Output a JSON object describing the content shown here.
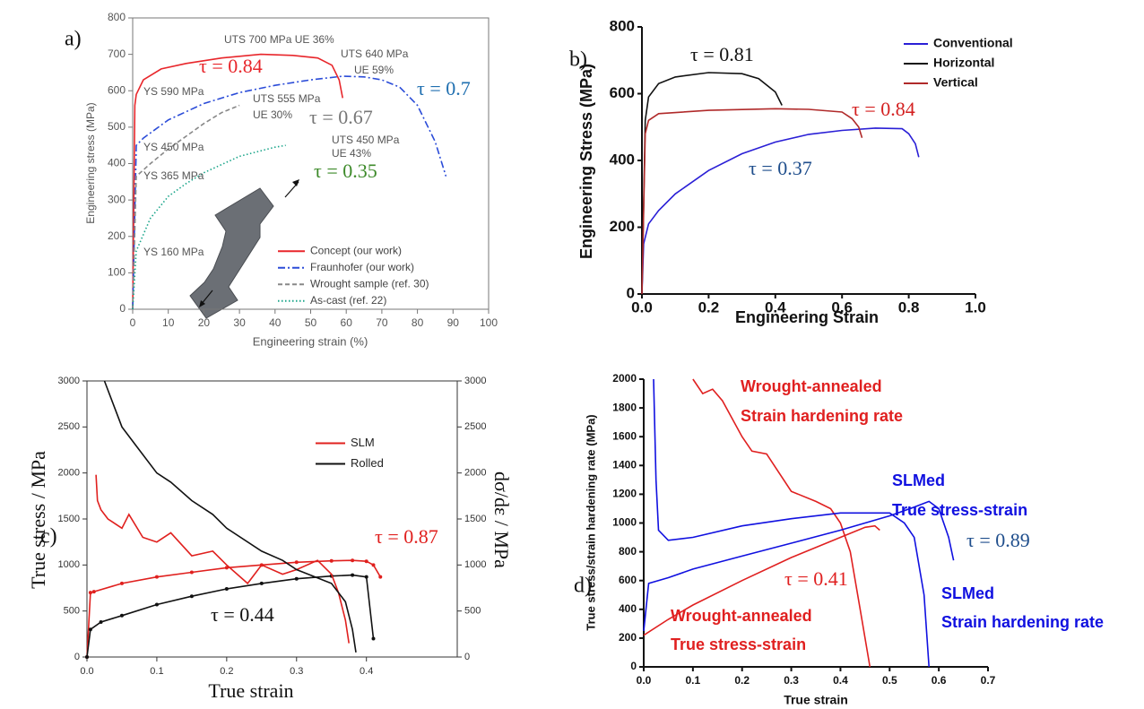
{
  "chart_data": [
    {
      "type": "line",
      "panel_label": "a)",
      "x_label": "Engineering strain (%)",
      "y_label": "Engineering stress (MPa)",
      "xlim": [
        0,
        100
      ],
      "xticks": [
        0,
        10,
        20,
        30,
        40,
        50,
        60,
        70,
        80,
        90,
        100
      ],
      "ylim": [
        0,
        800
      ],
      "yticks": [
        0,
        100,
        200,
        300,
        400,
        500,
        600,
        700,
        800
      ],
      "legend": "lower right",
      "series": [
        {
          "name": "Concept (our work)",
          "color": "#e8262b",
          "linestyle": "solid",
          "x": [
            0,
            0.6,
            1,
            3,
            8,
            15,
            25,
            36,
            45,
            52,
            56,
            58,
            59
          ],
          "values": [
            0,
            560,
            590,
            630,
            660,
            675,
            690,
            700,
            697,
            690,
            670,
            630,
            580
          ]
        },
        {
          "name": "Fraunhofer (our work)",
          "color": "#2b4cd8",
          "linestyle": "dashdot",
          "x": [
            0,
            1,
            3,
            10,
            20,
            30,
            40,
            50,
            59,
            65,
            70,
            75,
            80,
            85,
            88
          ],
          "values": [
            0,
            450,
            470,
            520,
            565,
            595,
            615,
            630,
            640,
            638,
            630,
            610,
            560,
            460,
            365
          ]
        },
        {
          "name": "Wrought sample (ref. 30)",
          "color": "#888888",
          "linestyle": "dashed",
          "x": [
            0,
            1,
            5,
            10,
            15,
            20,
            25,
            30
          ],
          "values": [
            0,
            365,
            400,
            440,
            475,
            510,
            540,
            560
          ]
        },
        {
          "name": "As-cast (ref. 22)",
          "color": "#1aa58a",
          "linestyle": "dotted",
          "x": [
            0,
            1,
            5,
            10,
            15,
            20,
            30,
            40,
            43
          ],
          "values": [
            0,
            160,
            250,
            310,
            345,
            375,
            420,
            445,
            450
          ]
        }
      ],
      "annotations": [
        {
          "text": "UTS 700 MPa UE 36%",
          "color": "#555555"
        },
        {
          "text": "UTS 640 MPa",
          "color": "#555555"
        },
        {
          "text": "UE 59%",
          "color": "#555555"
        },
        {
          "text": "UTS 555 MPa",
          "color": "#555555"
        },
        {
          "text": "UE 30%",
          "color": "#555555"
        },
        {
          "text": "UTS 450 MPa",
          "color": "#555555"
        },
        {
          "text": "UE 43%",
          "color": "#555555"
        },
        {
          "text": "YS 590 MPa",
          "color": "#555555"
        },
        {
          "text": "YS 450 MPa",
          "color": "#555555"
        },
        {
          "text": "YS 365 MPa",
          "color": "#555555"
        },
        {
          "text": "YS 160 MPa",
          "color": "#555555"
        },
        {
          "text": "τ = 0.84",
          "color": "#e8262b"
        },
        {
          "text": "τ = 0.7",
          "color": "#1f6fb0"
        },
        {
          "text": "τ = 0.67",
          "color": "#777777"
        },
        {
          "text": "τ = 0.35",
          "color": "#3d8a2a"
        }
      ]
    },
    {
      "type": "line",
      "panel_label": "b)",
      "x_label": "Engineering Strain",
      "y_label": "Engineering Stress (MPa)",
      "xlim": [
        0,
        1.0
      ],
      "xticks": [
        {
          "value": 0,
          "label": "0.0"
        },
        0.2,
        0.4,
        0.6,
        0.8,
        {
          "value": 1,
          "label": "1.0"
        }
      ],
      "ylim": [
        0,
        800
      ],
      "yticks": [
        0,
        200,
        400,
        600,
        800
      ],
      "legend": "upper right",
      "series": [
        {
          "name": "Conventional",
          "color": "#2a1fd6",
          "linestyle": "solid",
          "x": [
            0,
            0.005,
            0.02,
            0.05,
            0.1,
            0.2,
            0.3,
            0.4,
            0.5,
            0.6,
            0.7,
            0.78,
            0.8,
            0.82,
            0.83
          ],
          "values": [
            0,
            150,
            210,
            250,
            300,
            370,
            420,
            455,
            478,
            490,
            497,
            495,
            480,
            450,
            410
          ]
        },
        {
          "name": "Horizontal",
          "color": "#111111",
          "linestyle": "solid",
          "x": [
            0,
            0.01,
            0.02,
            0.05,
            0.1,
            0.2,
            0.3,
            0.35,
            0.4,
            0.42
          ],
          "values": [
            0,
            520,
            590,
            630,
            650,
            663,
            660,
            645,
            605,
            565
          ]
        },
        {
          "name": "Vertical",
          "color": "#b02a2a",
          "linestyle": "solid",
          "x": [
            0,
            0.01,
            0.02,
            0.05,
            0.2,
            0.4,
            0.5,
            0.6,
            0.63,
            0.65,
            0.66
          ],
          "values": [
            0,
            480,
            520,
            540,
            550,
            555,
            553,
            545,
            525,
            500,
            468
          ]
        }
      ],
      "annotations": [
        {
          "text": "τ = 0.81",
          "color": "#111111"
        },
        {
          "text": "τ = 0.84",
          "color": "#d42020"
        },
        {
          "text": "τ = 0.37",
          "color": "#1f4e8c"
        }
      ]
    },
    {
      "type": "line",
      "panel_label": "c)",
      "x_label": "True strain",
      "y_label": "True stress / MPa",
      "y2_label": "dσ/dε / MPa",
      "xlim": [
        0,
        0.53
      ],
      "xticks": [
        {
          "value": 0,
          "label": "0.0"
        },
        0.1,
        0.2,
        0.3,
        0.4
      ],
      "ylim": [
        0,
        3000
      ],
      "yticks": [
        0,
        500,
        1000,
        1500,
        2000,
        2500,
        3000
      ],
      "y2lim": [
        0,
        3000
      ],
      "y2ticks": [
        0,
        500,
        1000,
        1500,
        2000,
        2500,
        3000
      ],
      "legend": "upper right",
      "series": [
        {
          "name": "SLM",
          "color": "#e0201e",
          "linestyle": "solid",
          "marker": true,
          "x": [
            0,
            0.005,
            0.01,
            0.05,
            0.1,
            0.15,
            0.2,
            0.25,
            0.3,
            0.35,
            0.38,
            0.4,
            0.41,
            0.42
          ],
          "values": [
            0,
            700,
            710,
            800,
            870,
            920,
            970,
            1000,
            1030,
            1045,
            1050,
            1040,
            1000,
            870
          ]
        },
        {
          "name": "Rolled",
          "color": "#111111",
          "linestyle": "solid",
          "marker": true,
          "x": [
            0,
            0.005,
            0.02,
            0.05,
            0.1,
            0.15,
            0.2,
            0.25,
            0.3,
            0.35,
            0.38,
            0.4,
            0.41
          ],
          "values": [
            0,
            300,
            380,
            450,
            570,
            660,
            740,
            800,
            850,
            880,
            890,
            870,
            200
          ]
        },
        {
          "color": "#e0201e",
          "linestyle": "solid",
          "axis": "y2",
          "x": [
            0.013,
            0.015,
            0.02,
            0.03,
            0.05,
            0.06,
            0.08,
            0.1,
            0.12,
            0.15,
            0.18,
            0.2,
            0.23,
            0.25,
            0.28,
            0.3,
            0.33,
            0.35,
            0.36,
            0.37,
            0.375
          ],
          "values": [
            1980,
            1700,
            1600,
            1500,
            1400,
            1550,
            1300,
            1250,
            1350,
            1100,
            1150,
            1000,
            800,
            1000,
            900,
            950,
            1050,
            900,
            700,
            400,
            150
          ]
        },
        {
          "color": "#111111",
          "linestyle": "solid",
          "axis": "y2",
          "x": [
            0.025,
            0.04,
            0.05,
            0.07,
            0.1,
            0.12,
            0.15,
            0.18,
            0.2,
            0.25,
            0.28,
            0.3,
            0.35,
            0.37,
            0.38,
            0.385
          ],
          "values": [
            3000,
            2700,
            2500,
            2300,
            2000,
            1900,
            1700,
            1550,
            1400,
            1150,
            1050,
            950,
            800,
            600,
            300,
            50
          ]
        }
      ],
      "annotations": [
        {
          "text": "τ = 0.87",
          "color": "#e0201e"
        },
        {
          "text": "τ = 0.44",
          "color": "#111111"
        }
      ]
    },
    {
      "type": "line",
      "panel_label": "d)",
      "x_label": "True strain",
      "y_label": "True stress/strain hardening rate (MPa)",
      "xlim": [
        0,
        0.7
      ],
      "xticks": [
        {
          "value": 0,
          "label": "0.0"
        },
        0.1,
        0.2,
        0.3,
        0.4,
        0.5,
        0.6,
        0.7
      ],
      "ylim": [
        0,
        2000
      ],
      "yticks": [
        0,
        200,
        400,
        600,
        800,
        1000,
        1200,
        1400,
        1600,
        1800,
        2000
      ],
      "series": [
        {
          "color": "#e02020",
          "linestyle": "solid",
          "x": [
            0,
            0.05,
            0.1,
            0.2,
            0.3,
            0.4,
            0.45,
            0.47,
            0.48
          ],
          "values": [
            220,
            330,
            430,
            600,
            760,
            900,
            970,
            980,
            950
          ]
        },
        {
          "color": "#e02020",
          "linestyle": "solid",
          "x": [
            0.1,
            0.12,
            0.14,
            0.16,
            0.2,
            0.22,
            0.25,
            0.3,
            0.35,
            0.38,
            0.4,
            0.42,
            0.44,
            0.46
          ],
          "values": [
            2000,
            1900,
            1930,
            1850,
            1600,
            1500,
            1480,
            1220,
            1150,
            1100,
            1000,
            800,
            400,
            0
          ]
        },
        {
          "color": "#1010e0",
          "linestyle": "solid",
          "x": [
            0,
            0.01,
            0.05,
            0.1,
            0.2,
            0.3,
            0.4,
            0.5,
            0.55,
            0.58,
            0.6,
            0.62,
            0.63
          ],
          "values": [
            250,
            580,
            620,
            680,
            770,
            860,
            950,
            1050,
            1110,
            1150,
            1100,
            900,
            740
          ]
        },
        {
          "color": "#1010e0",
          "linestyle": "solid",
          "x": [
            0.02,
            0.025,
            0.03,
            0.05,
            0.1,
            0.2,
            0.3,
            0.4,
            0.5,
            0.53,
            0.55,
            0.57,
            0.58
          ],
          "values": [
            2000,
            1300,
            950,
            880,
            900,
            980,
            1030,
            1070,
            1070,
            1000,
            900,
            500,
            0
          ]
        }
      ],
      "annotations": [
        {
          "text": "Wrought-annealed",
          "color": "#e02020"
        },
        {
          "text": "Strain hardening rate",
          "color": "#e02020"
        },
        {
          "text": "SLMed",
          "color": "#1010e0"
        },
        {
          "text": "True stress-strain",
          "color": "#1010e0"
        },
        {
          "text": "τ = 0.89",
          "color": "#1f4e8c"
        },
        {
          "text": "τ = 0.41",
          "color": "#e02020"
        },
        {
          "text": "Wrought-annealed",
          "color": "#e02020"
        },
        {
          "text": "True stress-strain",
          "color": "#e02020"
        },
        {
          "text": "SLMed",
          "color": "#1010e0"
        },
        {
          "text": "Strain hardening rate",
          "color": "#1010e0"
        }
      ]
    }
  ]
}
